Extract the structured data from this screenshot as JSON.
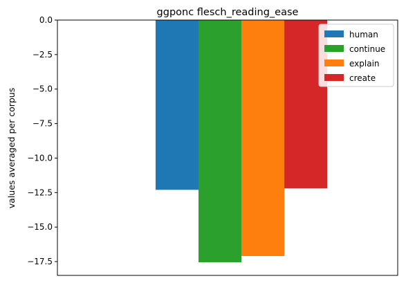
{
  "chart_data": {
    "type": "bar",
    "title": "ggponc flesch_reading_ease",
    "xlabel": "",
    "ylabel": "values averaged per corpus",
    "ylim": [
      -18.5,
      0.0
    ],
    "yticks": [
      0.0,
      -2.5,
      -5.0,
      -7.5,
      -10.0,
      -12.5,
      -15.0,
      -17.5
    ],
    "ytick_labels": [
      "0.0",
      "−2.5",
      "−5.0",
      "−7.5",
      "−10.0",
      "−12.5",
      "−15.0",
      "−17.5"
    ],
    "categories": [
      ""
    ],
    "grid": false,
    "legend_position": "top-right",
    "series": [
      {
        "name": "human",
        "values": [
          -12.3
        ],
        "color": "#1f77b4"
      },
      {
        "name": "continue",
        "values": [
          -17.55
        ],
        "color": "#2ca02c"
      },
      {
        "name": "explain",
        "values": [
          -17.1
        ],
        "color": "#ff7f0e"
      },
      {
        "name": "create",
        "values": [
          -12.2
        ],
        "color": "#d62728"
      }
    ]
  }
}
